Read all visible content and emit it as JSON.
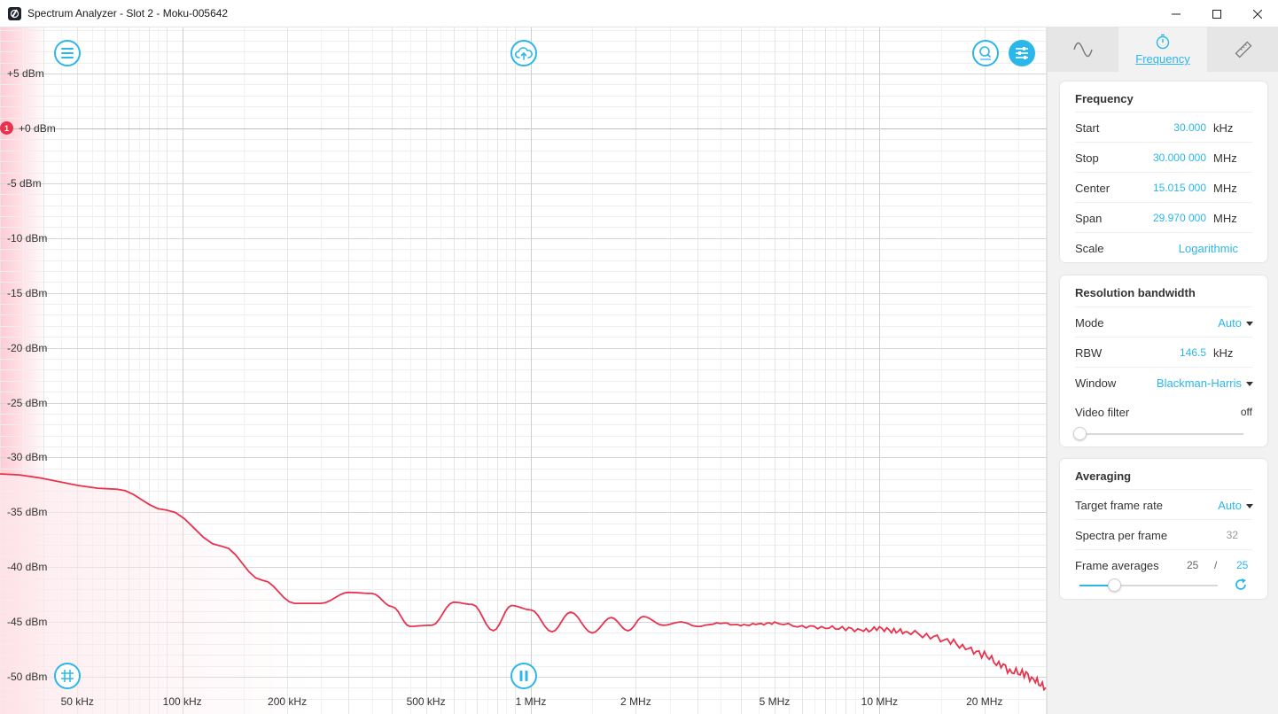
{
  "window": {
    "title": "Spectrum Analyzer - Slot 2 - Moku-005642",
    "app_icon": "moku-app-icon",
    "controls": [
      "minimize-icon",
      "maximize-icon",
      "close-icon"
    ]
  },
  "plot": {
    "marker_label": "1",
    "toolbar_icons": [
      "menu-icon",
      "cloud-upload-icon",
      "zoom-icon",
      "settings-sliders-icon",
      "grid-icon",
      "pause-icon"
    ],
    "trace_color": "#e8334f",
    "accent_color": "#2bb7ea"
  },
  "chart_data": {
    "type": "line",
    "x_scale": "log",
    "xlim": [
      30000,
      30000000
    ],
    "ylim": [
      -52,
      10
    ],
    "x_ticks": [
      {
        "v": 50000,
        "label": "50 kHz"
      },
      {
        "v": 100000,
        "label": "100 kHz"
      },
      {
        "v": 200000,
        "label": "200 kHz"
      },
      {
        "v": 500000,
        "label": "500 kHz"
      },
      {
        "v": 1000000,
        "label": "1 MHz"
      },
      {
        "v": 2000000,
        "label": "2 MHz"
      },
      {
        "v": 5000000,
        "label": "5 MHz"
      },
      {
        "v": 10000000,
        "label": "10 MHz"
      },
      {
        "v": 20000000,
        "label": "20 MHz"
      }
    ],
    "y_ticks": [
      {
        "v": 5,
        "label": "+5 dBm"
      },
      {
        "v": 0,
        "label": "+0 dBm"
      },
      {
        "v": -5,
        "label": "-5 dBm"
      },
      {
        "v": -10,
        "label": "-10 dBm"
      },
      {
        "v": -15,
        "label": "-15 dBm"
      },
      {
        "v": -20,
        "label": "-20 dBm"
      },
      {
        "v": -25,
        "label": "-25 dBm"
      },
      {
        "v": -30,
        "label": "-30 dBm"
      },
      {
        "v": -35,
        "label": "-35 dBm"
      },
      {
        "v": -40,
        "label": "-40 dBm"
      },
      {
        "v": -45,
        "label": "-45 dBm"
      },
      {
        "v": -50,
        "label": "-50 dBm"
      }
    ],
    "grid": true,
    "series": [
      {
        "x": [
          30000,
          65000,
          90000,
          130000,
          170000,
          210000,
          250000,
          300000,
          350000,
          400000,
          450000,
          520000,
          600000,
          680000,
          780000,
          880000,
          1000000,
          1150000,
          1300000,
          1500000,
          1700000,
          1900000,
          2100000,
          2400000,
          2700000,
          3000000,
          3500000,
          4000000,
          4500000,
          5000000,
          6000000,
          7000000,
          8000000,
          9000000,
          10000000,
          11000000,
          12000000,
          14000000,
          16000000,
          18000000,
          20000000,
          22000000,
          24000000,
          26000000,
          28000000,
          30000000
        ],
        "y": [
          -31.5,
          -32.9,
          -34.8,
          -38.1,
          -41.2,
          -43.3,
          -43.3,
          -42.3,
          -42.4,
          -43.6,
          -45.4,
          -45.3,
          -43.2,
          -43.4,
          -45.8,
          -43.5,
          -43.9,
          -45.9,
          -44.1,
          -46.0,
          -44.6,
          -45.8,
          -44.5,
          -45.3,
          -45.0,
          -45.4,
          -45.1,
          -45.3,
          -45.2,
          -45.1,
          -45.4,
          -45.5,
          -45.6,
          -45.8,
          -45.6,
          -45.8,
          -45.9,
          -46.3,
          -46.8,
          -47.5,
          -48.0,
          -48.8,
          -49.5,
          -49.7,
          -50.4,
          -51.0
        ]
      }
    ]
  },
  "panel": {
    "tabs": [
      {
        "icon": "sine-wave-icon",
        "label": ""
      },
      {
        "icon": "stopwatch-icon",
        "label": "Frequency"
      },
      {
        "icon": "ruler-icon",
        "label": ""
      }
    ],
    "frequency": {
      "title": "Frequency",
      "start": {
        "label": "Start",
        "value": "30.000",
        "unit": "kHz"
      },
      "stop": {
        "label": "Stop",
        "value": "30.000 000",
        "unit": "MHz"
      },
      "center": {
        "label": "Center",
        "value": "15.015 000",
        "unit": "MHz"
      },
      "span": {
        "label": "Span",
        "value": "29.970 000",
        "unit": "MHz"
      },
      "scale": {
        "label": "Scale",
        "value": "Logarithmic"
      }
    },
    "rbw": {
      "title": "Resolution bandwidth",
      "mode": {
        "label": "Mode",
        "value": "Auto"
      },
      "rbw": {
        "label": "RBW",
        "value": "146.5",
        "unit": "kHz"
      },
      "window": {
        "label": "Window",
        "value": "Blackman-Harris"
      },
      "video_filter": {
        "label": "Video filter",
        "value": "off",
        "level": 0
      }
    },
    "averaging": {
      "title": "Averaging",
      "target_frame_rate": {
        "label": "Target frame rate",
        "value": "Auto"
      },
      "spectra_per_frame": {
        "label": "Spectra per frame",
        "value": "32"
      },
      "frame_averages": {
        "label": "Frame averages",
        "current": "25",
        "separator": "/",
        "target": "25",
        "level": 0.25
      }
    }
  }
}
